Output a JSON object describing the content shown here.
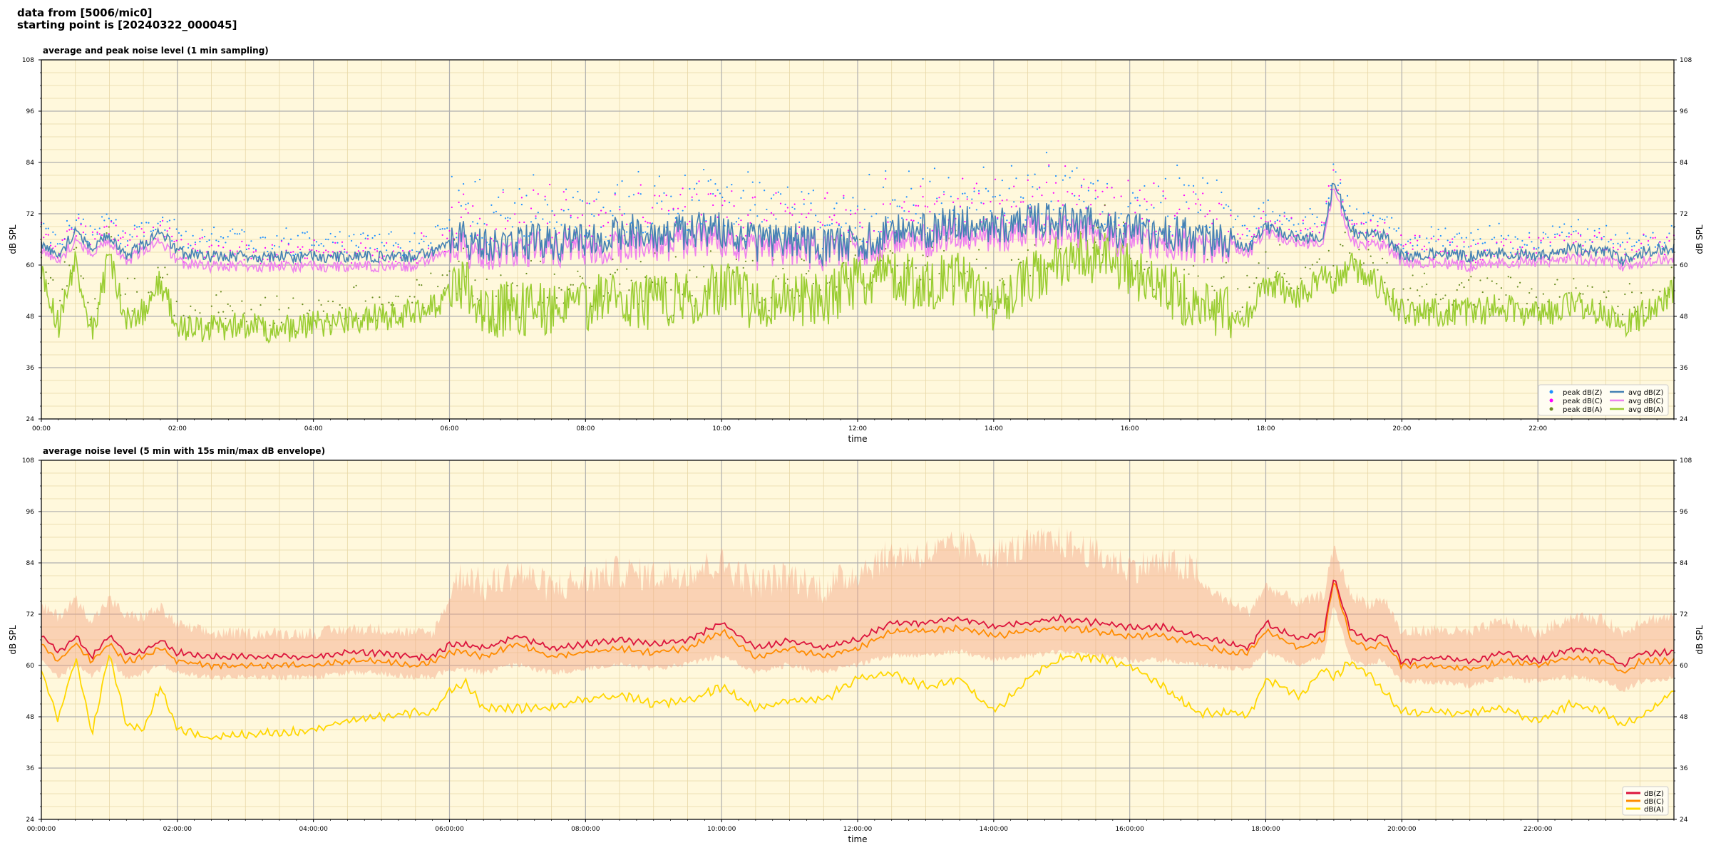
{
  "header": {
    "line1": "data from [5006/mic0]",
    "line2": "starting point is [20240322_000045]"
  },
  "colors": {
    "plot_bg": "#fff8dc",
    "avg_z": "#4682b4",
    "avg_c": "#ee82ee",
    "avg_a": "#9acd32",
    "peak_z": "#1e90ff",
    "peak_c": "#ff00ff",
    "peak_a": "#6b8e23",
    "env_z": "#dc143c",
    "env_c": "#ff8c00",
    "env_a": "#ffd700",
    "envelope_fill": "#f4a582"
  },
  "chart_data": [
    {
      "type": "line",
      "title": "average and peak noise level (1 min sampling)",
      "xlabel": "time",
      "ylabel": "dB SPL",
      "ylim": [
        24,
        108
      ],
      "yticks": [
        24,
        36,
        48,
        60,
        72,
        84,
        96,
        108
      ],
      "xlim_hours": [
        0,
        24
      ],
      "xtick_labels": [
        "00:00",
        "02:00",
        "04:00",
        "06:00",
        "08:00",
        "10:00",
        "12:00",
        "14:00",
        "16:00",
        "18:00",
        "20:00",
        "22:00"
      ],
      "grid": true,
      "legend_position": "bottom-right",
      "legend": [
        {
          "label": "peak dB(Z)",
          "kind": "dot",
          "color": "#1e90ff"
        },
        {
          "label": "peak dB(C)",
          "kind": "dot",
          "color": "#ff00ff"
        },
        {
          "label": "peak dB(A)",
          "kind": "dot",
          "color": "#6b8e23"
        },
        {
          "label": "avg dB(Z)",
          "kind": "line",
          "color": "#4682b4"
        },
        {
          "label": "avg dB(C)",
          "kind": "line",
          "color": "#ee82ee"
        },
        {
          "label": "avg dB(A)",
          "kind": "line",
          "color": "#9acd32"
        }
      ],
      "x_hours": [
        0,
        0.25,
        0.5,
        0.75,
        1,
        1.25,
        1.5,
        1.75,
        2,
        2.5,
        3,
        3.5,
        4,
        4.5,
        5,
        5.5,
        5.75,
        6,
        6.25,
        6.5,
        7,
        7.5,
        8,
        8.5,
        9,
        9.5,
        10,
        10.5,
        11,
        11.5,
        12,
        12.5,
        13,
        13.5,
        14,
        14.5,
        15,
        15.5,
        16,
        16.5,
        17,
        17.5,
        17.75,
        18,
        18.5,
        18.85,
        19,
        19.25,
        19.5,
        19.75,
        20,
        20.5,
        21,
        21.5,
        22,
        22.5,
        23,
        23.25,
        23.5,
        24
      ],
      "series": [
        {
          "name": "avg dB(Z)",
          "values": [
            65,
            62,
            68,
            64,
            67,
            62,
            65,
            68,
            63,
            62,
            62,
            62,
            62,
            62,
            62,
            62,
            63,
            65,
            66,
            64,
            66,
            65,
            66,
            68,
            67,
            68,
            68,
            65,
            66,
            64,
            65,
            68,
            68,
            70,
            69,
            70,
            70,
            69,
            68,
            68,
            67,
            66,
            64,
            69,
            66,
            67,
            80,
            68,
            67,
            67,
            62,
            63,
            62,
            63,
            62,
            64,
            63,
            61,
            63,
            64
          ]
        },
        {
          "name": "avg dB(C)",
          "values": [
            64,
            61,
            66,
            63,
            66,
            61,
            64,
            66,
            61,
            60,
            60,
            60,
            60,
            60,
            60,
            60,
            62,
            63,
            64,
            62,
            64,
            64,
            64,
            65,
            65,
            66,
            66,
            63,
            64,
            63,
            64,
            66,
            66,
            68,
            67,
            68,
            68,
            67,
            66,
            66,
            65,
            65,
            63,
            68,
            65,
            66,
            79,
            66,
            65,
            65,
            61,
            61,
            60,
            61,
            61,
            62,
            61,
            60,
            61,
            62
          ]
        },
        {
          "name": "avg dB(A)",
          "values": [
            58,
            46,
            60,
            44,
            62,
            47,
            49,
            56,
            46,
            45,
            46,
            45,
            46,
            47,
            48,
            49,
            50,
            54,
            56,
            49,
            50,
            50,
            51,
            52,
            51,
            52,
            55,
            51,
            52,
            52,
            56,
            58,
            55,
            57,
            50,
            56,
            61,
            62,
            59,
            55,
            50,
            49,
            48,
            56,
            53,
            58,
            56,
            60,
            57,
            54,
            49,
            49,
            49,
            50,
            48,
            51,
            49,
            46,
            48,
            54
          ]
        }
      ]
    },
    {
      "type": "line",
      "title": "average noise level (5 min with 15s min/max dB envelope)",
      "xlabel": "time",
      "ylabel": "dB SPL",
      "ylim": [
        24,
        108
      ],
      "yticks": [
        24,
        36,
        48,
        60,
        72,
        84,
        96,
        108
      ],
      "xlim_hours": [
        0,
        24
      ],
      "xtick_labels": [
        "00:00:00",
        "02:00:00",
        "04:00:00",
        "06:00:00",
        "08:00:00",
        "10:00:00",
        "12:00:00",
        "14:00:00",
        "16:00:00",
        "18:00:00",
        "20:00:00",
        "22:00:00"
      ],
      "grid": true,
      "legend_position": "bottom-right",
      "legend": [
        {
          "label": "dB(Z)",
          "kind": "line",
          "color": "#dc143c"
        },
        {
          "label": "dB(C)",
          "kind": "line",
          "color": "#ff8c00"
        },
        {
          "label": "dB(A)",
          "kind": "line",
          "color": "#ffd700"
        }
      ],
      "x_hours": [
        0,
        0.25,
        0.5,
        0.75,
        1,
        1.25,
        1.5,
        1.75,
        2,
        2.5,
        3,
        3.5,
        4,
        4.5,
        5,
        5.5,
        5.75,
        6,
        6.25,
        6.5,
        7,
        7.5,
        8,
        8.5,
        9,
        9.5,
        10,
        10.5,
        11,
        11.5,
        12,
        12.5,
        13,
        13.5,
        14,
        14.5,
        15,
        15.5,
        16,
        16.5,
        17,
        17.5,
        17.75,
        18,
        18.5,
        18.85,
        19,
        19.25,
        19.5,
        19.75,
        20,
        20.5,
        21,
        21.5,
        22,
        22.5,
        23,
        23.25,
        23.5,
        24
      ],
      "series": [
        {
          "name": "dB(Z)",
          "values": [
            67,
            63,
            67,
            62,
            67,
            63,
            63,
            66,
            63,
            62,
            62,
            62,
            62,
            63,
            63,
            62,
            62,
            65,
            65,
            64,
            67,
            64,
            65,
            66,
            65,
            66,
            70,
            64,
            66,
            64,
            66,
            70,
            70,
            71,
            69,
            70,
            71,
            70,
            69,
            69,
            67,
            65,
            64,
            70,
            66,
            68,
            81,
            68,
            66,
            67,
            61,
            62,
            61,
            63,
            61,
            64,
            63,
            60,
            63,
            63
          ]
        },
        {
          "name": "dB(C)",
          "values": [
            65,
            61,
            65,
            61,
            65,
            61,
            62,
            64,
            61,
            60,
            60,
            60,
            60,
            61,
            61,
            60,
            61,
            63,
            63,
            62,
            65,
            62,
            63,
            64,
            63,
            64,
            68,
            62,
            64,
            62,
            64,
            68,
            68,
            69,
            67,
            68,
            69,
            68,
            67,
            67,
            65,
            63,
            63,
            68,
            64,
            66,
            80,
            66,
            64,
            65,
            60,
            60,
            59,
            61,
            60,
            62,
            61,
            58,
            61,
            61
          ]
        },
        {
          "name": "dB(A)",
          "values": [
            59,
            47,
            62,
            44,
            63,
            46,
            45,
            55,
            45,
            43,
            44,
            44,
            45,
            47,
            48,
            49,
            49,
            54,
            56,
            50,
            50,
            50,
            52,
            53,
            51,
            52,
            55,
            50,
            52,
            52,
            57,
            58,
            55,
            57,
            49,
            57,
            62,
            62,
            60,
            55,
            49,
            49,
            48,
            57,
            53,
            59,
            57,
            61,
            58,
            54,
            49,
            49,
            49,
            50,
            47,
            51,
            49,
            46,
            48,
            54
          ]
        },
        {
          "name": "max dB(Z)",
          "values": [
            72,
            70,
            74,
            69,
            74,
            70,
            70,
            72,
            68,
            66,
            66,
            66,
            66,
            67,
            67,
            66,
            66,
            74,
            78,
            74,
            78,
            74,
            76,
            78,
            77,
            78,
            80,
            75,
            77,
            74,
            78,
            82,
            82,
            84,
            82,
            84,
            85,
            82,
            79,
            80,
            78,
            73,
            71,
            77,
            73,
            75,
            86,
            75,
            73,
            74,
            66,
            67,
            66,
            69,
            66,
            70,
            69,
            66,
            69,
            70
          ]
        },
        {
          "name": "min dB(C)",
          "values": [
            62,
            58,
            61,
            58,
            62,
            58,
            59,
            61,
            59,
            58,
            58,
            58,
            58,
            59,
            59,
            58,
            58,
            60,
            60,
            59,
            61,
            59,
            60,
            61,
            60,
            61,
            63,
            59,
            61,
            59,
            61,
            63,
            63,
            64,
            62,
            63,
            64,
            63,
            62,
            62,
            61,
            60,
            60,
            64,
            61,
            63,
            75,
            62,
            61,
            62,
            57,
            57,
            56,
            58,
            57,
            58,
            57,
            55,
            57,
            58
          ]
        }
      ]
    }
  ]
}
